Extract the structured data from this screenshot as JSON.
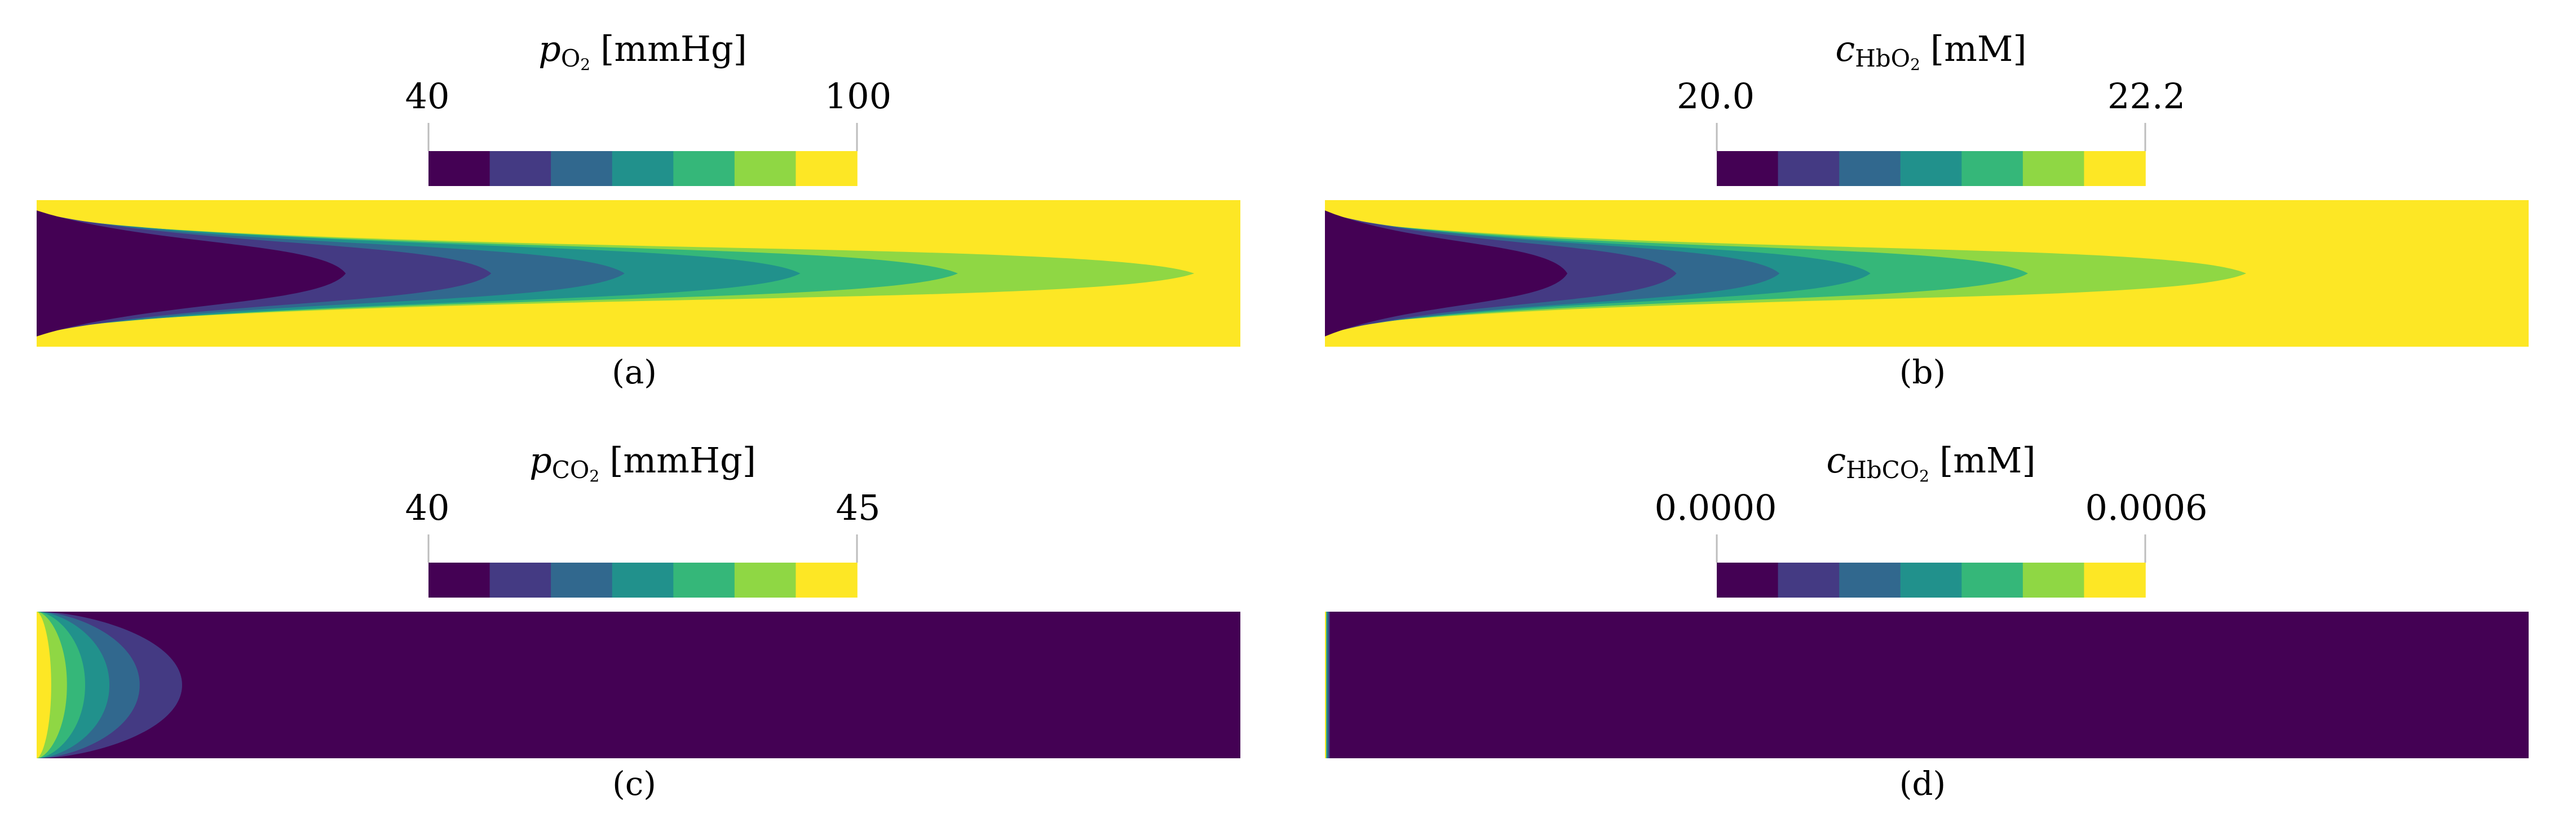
{
  "colors": [
    "#440154",
    "#443a83",
    "#31688e",
    "#21918c",
    "#35b779",
    "#8fd744",
    "#fde725"
  ],
  "panels": [
    {
      "id": "a",
      "symbol": "p",
      "subscript_main": "O",
      "subscript_num": "2",
      "unit": "[mmHg]",
      "tick_min": "40",
      "tick_max": "100",
      "caption": "(a)",
      "field_shape": "long-parabolic",
      "level_extents": [
        0.255,
        0.375,
        0.485,
        0.63,
        0.76,
        0.955
      ]
    },
    {
      "id": "b",
      "symbol": "c",
      "subscript_main": "HbO",
      "subscript_num": "2",
      "unit": "[mM]",
      "tick_min": "20.0",
      "tick_max": "22.2",
      "caption": "(b)",
      "field_shape": "long-parabolic",
      "level_extents": [
        0.2,
        0.29,
        0.375,
        0.45,
        0.58,
        0.76
      ]
    },
    {
      "id": "c",
      "symbol": "p",
      "subscript_main": "CO",
      "subscript_num": "2",
      "unit": "[mmHg]",
      "tick_min": "40",
      "tick_max": "45",
      "caption": "(c)",
      "field_shape": "short-inlet",
      "level_extents": [
        0.12,
        0.085,
        0.06,
        0.04,
        0.025,
        0.012
      ]
    },
    {
      "id": "d",
      "symbol": "c",
      "subscript_main": "HbCO",
      "subscript_num": "2",
      "unit": "[mM]",
      "tick_min": "0.0000",
      "tick_max": "0.0006",
      "caption": "(d)",
      "field_shape": "thin-inlet",
      "level_extents": [
        0.004,
        0.003,
        0.002,
        0.0015,
        0.001,
        0.0007
      ]
    }
  ]
}
